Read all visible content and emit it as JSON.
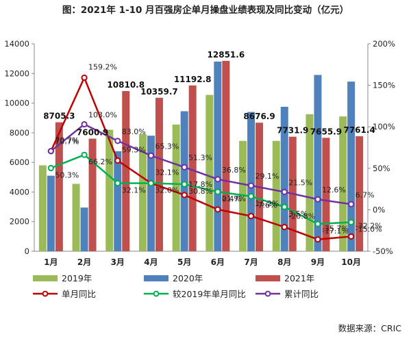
{
  "title": "图：2021年 1-10 月百强房企单月操盘业绩表现及同比变动（亿元）",
  "source_note": "数据来源：CRIC",
  "chart_data": {
    "type": "bar",
    "categories": [
      "1月",
      "2月",
      "3月",
      "4月",
      "5月",
      "6月",
      "7月",
      "8月",
      "9月",
      "10月"
    ],
    "ylim": [
      0,
      14000
    ],
    "y_ticks": [
      0,
      2000,
      4000,
      6000,
      8000,
      10000,
      12000,
      14000
    ],
    "y2lim": [
      -50,
      200
    ],
    "y2_ticks": [
      "-50%",
      "0%",
      "50%",
      "100%",
      "150%",
      "200%"
    ],
    "y2_tick_values": [
      -50,
      0,
      50,
      100,
      150,
      200
    ],
    "bar_series": [
      {
        "name": "2019年",
        "color": "#9bbb59",
        "values": [
          5800,
          4550,
          8200,
          7900,
          8550,
          10550,
          7450,
          7450,
          9250,
          9100
        ]
      },
      {
        "name": "2020年",
        "color": "#4f81bd",
        "values": [
          5100,
          2950,
          6750,
          7800,
          9450,
          12800,
          9400,
          9750,
          11900,
          11450
        ]
      },
      {
        "name": "2021年",
        "color": "#c0504d",
        "values": [
          8705.3,
          7600.9,
          10810.8,
          10359.7,
          11192.8,
          12851.6,
          8676.9,
          7731.9,
          7655.9,
          7761.4
        ]
      }
    ],
    "bar_labels_2021": [
      "8705.3",
      "7600.9",
      "10810.8",
      "10359.7",
      "11192.8",
      "12851.6",
      "8676.9",
      "7731.9",
      "7655.9",
      "7761.4"
    ],
    "line_series": [
      {
        "name": "单月同比",
        "color": "#c00000",
        "values": [
          70.7,
          159.2,
          59.3,
          32.1,
          17.8,
          0.4,
          -7.6,
          -20.8,
          -35.7,
          -32.2
        ],
        "labels": [
          "70.7%",
          "159.2%",
          "59.3%",
          "32.1%",
          "17.8%",
          "0.4%",
          "-7.6%",
          "-20.8%",
          "-35.7%",
          "-32.2%"
        ]
      },
      {
        "name": "较2019年单月同比",
        "color": "#00b050",
        "values": [
          50.3,
          66.2,
          32.1,
          32.0,
          30.8,
          21.7,
          16.2,
          3.5,
          -17.1,
          -15.0
        ],
        "labels": [
          "50.3%",
          "66.2%",
          "32.1%",
          "32.0%",
          "30.8%",
          "21.7%",
          "16.2%",
          "3.5%",
          "-17.1%",
          "-15.0%"
        ]
      },
      {
        "name": "累计同比",
        "color": "#7030a0",
        "values": [
          70.7,
          103.0,
          83.0,
          65.3,
          51.3,
          36.8,
          29.1,
          21.5,
          12.6,
          6.7
        ],
        "labels": [
          "70.7%",
          "103.0%",
          "83.0%",
          "65.3%",
          "51.3%",
          "36.8%",
          "29.1%",
          "21.5%",
          "12.6%",
          "6.7%"
        ]
      }
    ],
    "legend": [
      "2019年",
      "2020年",
      "2021年",
      "单月同比",
      "较2019年单月同比",
      "累计同比"
    ],
    "legend_position": "bottom",
    "grid": false
  }
}
